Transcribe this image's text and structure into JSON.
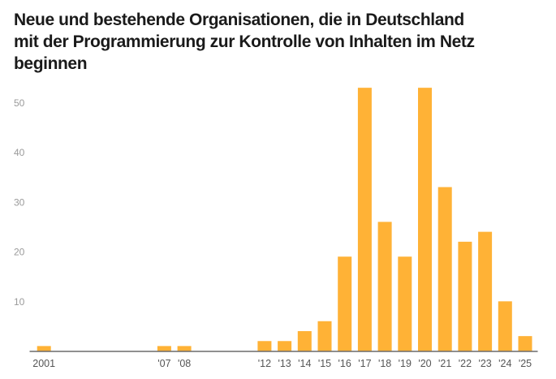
{
  "chart_data": {
    "type": "bar",
    "title_lines": [
      "Neue und bestehende Organisationen, die in Deutschland",
      "mit der Programmierung zur Kontrolle von Inhalten im Netz",
      "beginnen"
    ],
    "xlabel": "",
    "ylabel": "",
    "x_start_year": 2001,
    "x_end_year": 2025,
    "categories": [
      "2001",
      "'07",
      "'08",
      "'12",
      "'13",
      "'14",
      "'15",
      "'16",
      "'17",
      "'18",
      "'19",
      "'20",
      "'21",
      "'22",
      "'23",
      "'24",
      "'25"
    ],
    "years": [
      2001,
      2007,
      2008,
      2012,
      2013,
      2014,
      2015,
      2016,
      2017,
      2018,
      2019,
      2020,
      2021,
      2022,
      2023,
      2024,
      2025
    ],
    "values": [
      1,
      1,
      1,
      2,
      2,
      4,
      6,
      19,
      53,
      26,
      19,
      53,
      33,
      22,
      24,
      10,
      3
    ],
    "yticks": [
      10,
      20,
      30,
      40,
      50
    ],
    "ylim": [
      0,
      55
    ],
    "grid": false,
    "legend": "none",
    "bar_color": "#FFB236",
    "axis_color": "#6b6b6b"
  }
}
